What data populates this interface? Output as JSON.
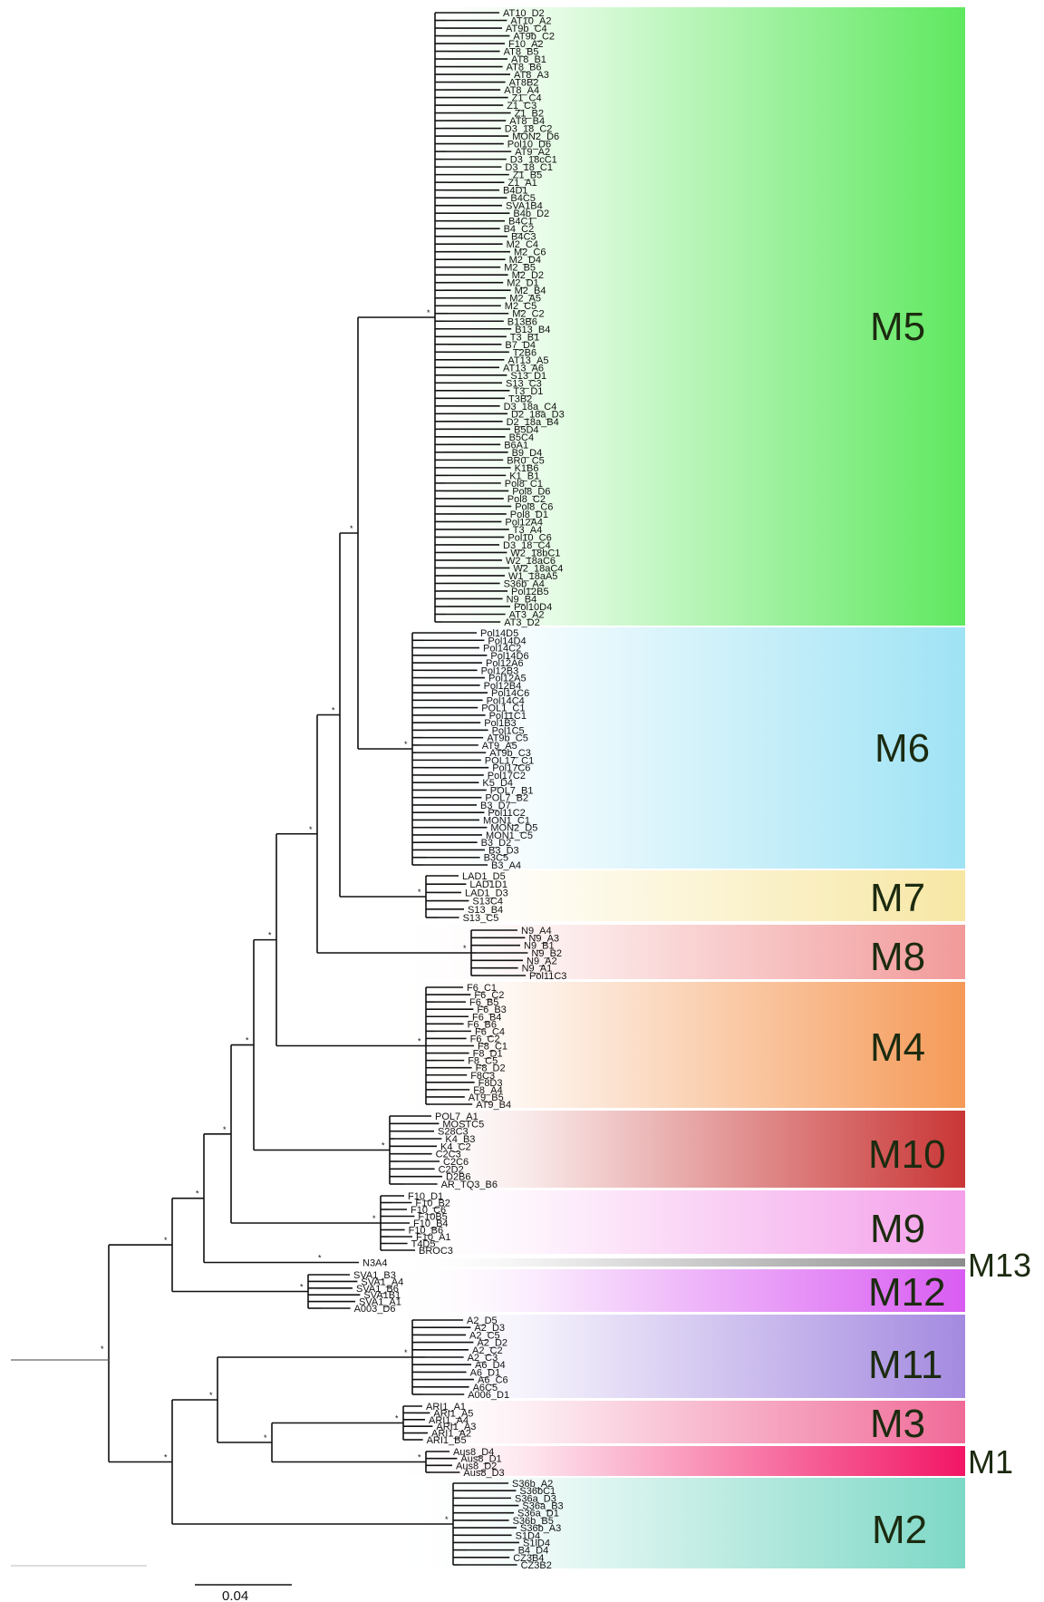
{
  "scale_bar": {
    "label": "0.04"
  },
  "clades": [
    {
      "id": "M5",
      "label": "M5",
      "color": "#5fe85f"
    },
    {
      "id": "M6",
      "label": "M6",
      "color": "#9fe3f5"
    },
    {
      "id": "M7",
      "label": "M7",
      "color": "#f7e7a4"
    },
    {
      "id": "M8",
      "label": "M8",
      "color": "#f29a9a"
    },
    {
      "id": "M4",
      "label": "M4",
      "color": "#f59a58"
    },
    {
      "id": "M10",
      "label": "M10",
      "color": "#c93636"
    },
    {
      "id": "M9",
      "label": "M9",
      "color": "#f4a0ea"
    },
    {
      "id": "M13",
      "label": "M13",
      "color": "#8c8c8c"
    },
    {
      "id": "M12",
      "label": "M12",
      "color": "#d95cf2"
    },
    {
      "id": "M11",
      "label": "M11",
      "color": "#a48ae0"
    },
    {
      "id": "M3",
      "label": "M3",
      "color": "#f06a98"
    },
    {
      "id": "M1",
      "label": "M1",
      "color": "#f21565"
    },
    {
      "id": "M2",
      "label": "M2",
      "color": "#7dd8c6"
    }
  ],
  "leaf_groups": [
    {
      "clade": "M5",
      "leaves": [
        "AT10_D2",
        "AT10_A2",
        "AT9b_C4",
        "AT9b_C2",
        "F10_A2",
        "AT8_B5",
        "AT8_B1",
        "AT8_B6",
        "AT8_A3",
        "AT8B2",
        "AT8_A4",
        "Z1_C4",
        "Z1_C3",
        "Z1_B2",
        "AT8_B4",
        "D3_18_C2",
        "MON2_D6",
        "Pol10_D6",
        "AT9_A2",
        "D3_18cC1",
        "D3_18_C1",
        "Z1_B5",
        "Z1_A1",
        "B4D1",
        "B4C5",
        "SVA1B4",
        "B4b_D2",
        "B4C1",
        "B4_C2",
        "B4C3",
        "M2_C4",
        "M2_C6",
        "M2_D4",
        "M2_B5",
        "M2_D2",
        "M2_D1",
        "M2_B4",
        "M2_A5",
        "M2_C5",
        "M2_C2",
        "B13B6",
        "B13_B4",
        "T3_B1",
        "B7_D4",
        "T2B6",
        "AT13_A5",
        "AT13_A6",
        "S13_D1",
        "S13_C3",
        "T3_D1",
        "T3B2",
        "D3_18a_C4",
        "D2_18a_D3",
        "D2_18a_B4",
        "B5D4",
        "B5C4",
        "B6A1",
        "B9_D4",
        "BR0_C5",
        "K1B6",
        "K1_B1",
        "Pol8_C1",
        "Pol8_D6",
        "Pol8_C2",
        "Pol8_C6",
        "Pol8_D1",
        "Pol12A4",
        "T3_A4",
        "Pol10_C6",
        "D3_18_C4",
        "W2_18bC1",
        "W2_18aC6",
        "W2_18aC4",
        "W1_18aA5",
        "S36b_A4",
        "Pol12B5",
        "N9_B4",
        "Pol10D4",
        "AT3_A2",
        "AT3_D2"
      ]
    },
    {
      "clade": "M6",
      "leaves": [
        "Pol14D5",
        "Pol14D4",
        "Pol14C2",
        "Pol14D6",
        "Pol12A6",
        "Pol12B3",
        "Pol12A5",
        "Pol12B4",
        "Pol14C6",
        "Pol14C4",
        "POL1_C1",
        "Pol11C1",
        "Pol1B3",
        "Pol1C5",
        "AT9b_C5",
        "AT9_A5",
        "AT9b_C3",
        "POL17_C1",
        "Pol17C6",
        "Pol17C2",
        "K5_D4",
        "POL7_B1",
        "POL7_B2",
        "B3_D7",
        "Pol11C2",
        "MON1_C1",
        "MON2_D5",
        "MON1_C5",
        "B3_D2",
        "B3_D3",
        "B3C5",
        "B3_A4"
      ]
    },
    {
      "clade": "M7",
      "leaves": [
        "LAD1_D5",
        "LAD1D1",
        "LAD1_D3",
        "S13C4",
        "S13_B4",
        "S13_C5"
      ]
    },
    {
      "clade": "M8",
      "leaves": [
        "N9_A4",
        "N9_A3",
        "N9_B1",
        "N9_B2",
        "N9_A2",
        "N9_A1",
        "Pol11C3"
      ]
    },
    {
      "clade": "M4",
      "leaves": [
        "F6_C1",
        "F6_C2",
        "F6_B5",
        "F6_B3",
        "F6_B4",
        "F6_B6",
        "F6_C4",
        "F6_C2",
        "F8_C1",
        "F8_D1",
        "F8_C5",
        "F8_D2",
        "F8C3",
        "F8D3",
        "F8_A4",
        "AT9_B5",
        "AT9_B4"
      ]
    },
    {
      "clade": "M10",
      "leaves": [
        "POL7_A1",
        "MOSTC5",
        "S28C3",
        "K4_B3",
        "K4_C2",
        "C2C3",
        "C2C6",
        "C2D2",
        "D2B6",
        "AR_TQ3_B6"
      ]
    },
    {
      "clade": "M9",
      "leaves": [
        "F10_D1",
        "F10_B2",
        "F10_C6",
        "F10B5",
        "F10_B4",
        "F10_B6",
        "F10_A1",
        "T4D5",
        "BROC3"
      ]
    },
    {
      "clade": "M13",
      "leaves": [
        "N3A4"
      ]
    },
    {
      "clade": "M12",
      "leaves": [
        "SVA1_B3",
        "SVA1_A4",
        "SVA1_B6",
        "SVA1B1",
        "SVA1_A1",
        "A003_D6"
      ]
    },
    {
      "clade": "M11",
      "leaves": [
        "A2_D5",
        "A2_D3",
        "A2_C5",
        "A2_D2",
        "A2_C2",
        "A2_C3",
        "A6_D4",
        "A6_D1",
        "A6_C6",
        "A6C5",
        "A006_D1"
      ]
    },
    {
      "clade": "M3",
      "leaves": [
        "ARI1_A1",
        "ARI1_A5",
        "ARI1_A4",
        "ARI1_A3",
        "ARI1_A2",
        "ARI1_B5"
      ]
    },
    {
      "clade": "M1",
      "leaves": [
        "Aus8_D4",
        "Aus8_D1",
        "Aus8_D2",
        "Aus8_D3"
      ]
    },
    {
      "clade": "M2",
      "leaves": [
        "S36b_A2",
        "S36bC1",
        "S36a_D3",
        "S36a_B3",
        "S36a_D1",
        "S36b_B5",
        "S36b_A3",
        "S1D4",
        "S1lD4",
        "B4_D4",
        "CZ3B4",
        "CZ3B2"
      ]
    }
  ]
}
